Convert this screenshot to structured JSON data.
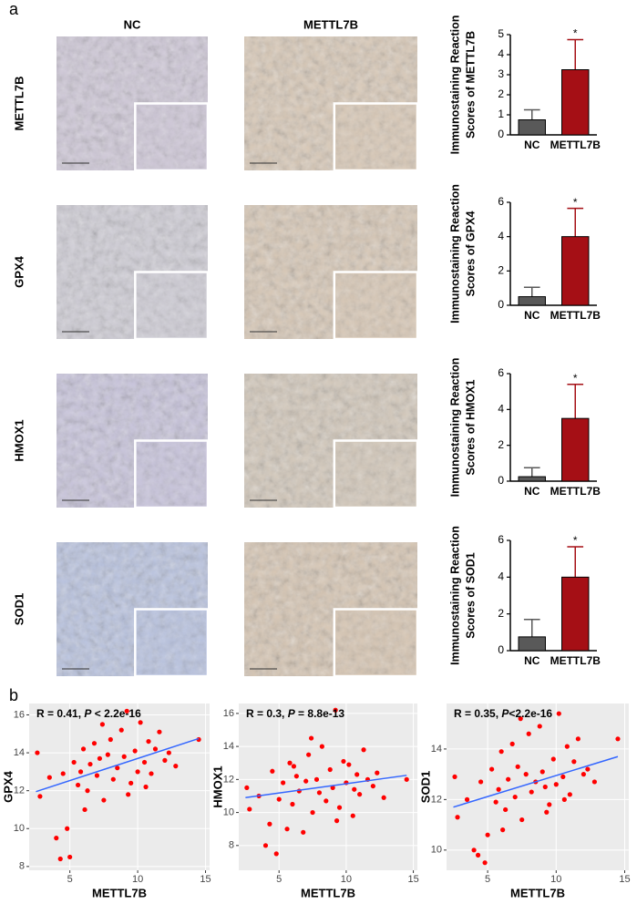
{
  "panels": {
    "a": "a",
    "b": "b"
  },
  "image_grid": {
    "columns": [
      "NC",
      "METTL7B"
    ],
    "rows": [
      "METTL7B",
      "GPX4",
      "HMOX1",
      "SOD1"
    ]
  },
  "chart_data": [
    {
      "type": "bar",
      "categories": [
        "NC",
        "METTL7B"
      ],
      "values": [
        0.75,
        3.25
      ],
      "errors": [
        0.5,
        1.5
      ],
      "colors": [
        "#595959",
        "#a50f15"
      ],
      "ylabel": [
        "Immunostaining Reaction",
        "Scores of METTL7B"
      ],
      "ylim": [
        0,
        5
      ],
      "yticks": [
        0,
        1,
        2,
        3,
        4,
        5
      ],
      "annotation": {
        "text": "*",
        "category": "METTL7B"
      }
    },
    {
      "type": "bar",
      "categories": [
        "NC",
        "METTL7B"
      ],
      "values": [
        0.5,
        4.0
      ],
      "errors": [
        0.55,
        1.65
      ],
      "colors": [
        "#595959",
        "#a50f15"
      ],
      "ylabel": [
        "Immunostaining Reaction",
        "Scores of GPX4"
      ],
      "ylim": [
        0,
        6
      ],
      "yticks": [
        0,
        2,
        4,
        6
      ],
      "annotation": {
        "text": "*",
        "category": "METTL7B"
      }
    },
    {
      "type": "bar",
      "categories": [
        "NC",
        "METTL7B"
      ],
      "values": [
        0.25,
        3.5
      ],
      "errors": [
        0.5,
        1.9
      ],
      "colors": [
        "#595959",
        "#a50f15"
      ],
      "ylabel": [
        "Immunostaining Reaction",
        "Scores of HMOX1"
      ],
      "ylim": [
        0,
        6
      ],
      "yticks": [
        0,
        2,
        4,
        6
      ],
      "annotation": {
        "text": "*",
        "category": "METTL7B"
      }
    },
    {
      "type": "bar",
      "categories": [
        "NC",
        "METTL7B"
      ],
      "values": [
        0.75,
        4.0
      ],
      "errors": [
        0.95,
        1.65
      ],
      "colors": [
        "#595959",
        "#a50f15"
      ],
      "ylabel": [
        "Immunostaining Reaction",
        "Scores of SOD1"
      ],
      "ylim": [
        0,
        6
      ],
      "yticks": [
        0,
        2,
        4,
        6
      ],
      "annotation": {
        "text": "*",
        "category": "METTL7B"
      }
    },
    {
      "type": "scatter",
      "xlabel": "METTL7B",
      "ylabel": "GPX4",
      "color": "#ff0000",
      "background": "#ebebeb",
      "grid": true,
      "annotation": [
        "R = 0.41, ",
        "P",
        " < 2.2e-16"
      ],
      "xlim": [
        2,
        15.3
      ],
      "ylim": [
        7.8,
        16.6
      ],
      "xticks": [
        5,
        10,
        15
      ],
      "yticks": [
        8,
        10,
        12,
        14,
        16
      ],
      "fit": {
        "x": [
          2.5,
          14.5
        ],
        "y": [
          11.95,
          14.75
        ],
        "color": "#3366ff"
      },
      "x": [
        2.6,
        2.8,
        3.5,
        4.0,
        4.3,
        4.5,
        4.8,
        5.0,
        5.3,
        5.6,
        5.8,
        6.0,
        6.3,
        6.5,
        6.8,
        7.0,
        7.2,
        7.5,
        7.8,
        8.0,
        8.2,
        8.5,
        8.8,
        9.0,
        9.2,
        9.5,
        9.8,
        10.0,
        10.2,
        10.5,
        10.8,
        11.0,
        11.3,
        11.6,
        12.0,
        12.3,
        12.8,
        14.5,
        9.3,
        7.4,
        6.1,
        10.6
      ],
      "y": [
        14.0,
        11.7,
        12.7,
        9.5,
        8.4,
        12.9,
        10.0,
        8.5,
        13.5,
        12.3,
        13.0,
        14.2,
        12.0,
        13.4,
        14.5,
        12.8,
        13.7,
        11.5,
        13.9,
        14.7,
        12.6,
        13.2,
        15.2,
        13.8,
        16.2,
        12.4,
        14.1,
        13.0,
        15.6,
        13.5,
        14.6,
        12.9,
        14.2,
        15.1,
        13.6,
        14.0,
        13.3,
        14.7,
        11.8,
        15.5,
        11.0,
        12.2
      ]
    },
    {
      "type": "scatter",
      "xlabel": "METTL7B",
      "ylabel": "HMOX1",
      "color": "#ff0000",
      "background": "#ebebeb",
      "grid": true,
      "annotation": [
        "R = 0.3, ",
        "P",
        " = 8.8e-13"
      ],
      "xlim": [
        2,
        15.3
      ],
      "ylim": [
        6.5,
        16.6
      ],
      "xticks": [
        5,
        10,
        15
      ],
      "yticks": [
        8,
        10,
        12,
        14,
        16
      ],
      "fit": {
        "x": [
          2.5,
          14.5
        ],
        "y": [
          10.9,
          12.25
        ],
        "color": "#3366ff"
      },
      "x": [
        2.6,
        2.8,
        3.5,
        4.0,
        4.3,
        4.5,
        4.8,
        5.0,
        5.3,
        5.6,
        5.8,
        6.0,
        6.3,
        6.5,
        6.8,
        7.0,
        7.2,
        7.5,
        7.8,
        8.0,
        8.2,
        8.5,
        8.8,
        9.0,
        9.2,
        9.5,
        9.8,
        10.0,
        10.2,
        10.5,
        10.8,
        11.0,
        11.3,
        11.6,
        12.0,
        12.3,
        12.8,
        14.5,
        9.3,
        7.4,
        6.1,
        10.6
      ],
      "y": [
        11.5,
        10.2,
        11.0,
        8.0,
        9.3,
        12.5,
        7.5,
        10.8,
        11.8,
        9.0,
        13.0,
        10.5,
        12.2,
        11.3,
        8.8,
        11.9,
        13.5,
        10.0,
        12.0,
        11.2,
        14.0,
        10.7,
        12.6,
        11.5,
        16.2,
        10.3,
        13.1,
        11.8,
        12.9,
        9.8,
        12.3,
        11.1,
        13.8,
        12.0,
        11.6,
        12.4,
        10.9,
        12.0,
        9.5,
        14.5,
        12.8,
        11.4
      ]
    },
    {
      "type": "scatter",
      "xlabel": "METTL7B",
      "ylabel": "SOD1",
      "color": "#ff0000",
      "background": "#ebebeb",
      "grid": true,
      "annotation": [
        "R = 0.35, ",
        "P",
        "<2.2e-16"
      ],
      "xlim": [
        2,
        15.3
      ],
      "ylim": [
        9.2,
        15.8
      ],
      "xticks": [
        5,
        10,
        15
      ],
      "yticks": [
        10,
        12,
        14
      ],
      "fit": {
        "x": [
          2.5,
          14.5
        ],
        "y": [
          11.7,
          13.7
        ],
        "color": "#3366ff"
      },
      "x": [
        2.6,
        2.8,
        3.5,
        4.0,
        4.3,
        4.5,
        4.8,
        5.0,
        5.3,
        5.6,
        5.8,
        6.0,
        6.3,
        6.5,
        6.8,
        7.0,
        7.2,
        7.5,
        7.8,
        8.0,
        8.2,
        8.5,
        8.8,
        9.0,
        9.2,
        9.5,
        9.8,
        10.0,
        10.2,
        10.5,
        10.8,
        11.0,
        11.3,
        11.6,
        12.0,
        12.3,
        12.8,
        14.5,
        9.3,
        7.4,
        6.1,
        10.6
      ],
      "y": [
        12.9,
        11.3,
        12.0,
        10.0,
        9.8,
        12.7,
        9.5,
        10.6,
        13.2,
        11.9,
        12.4,
        13.9,
        11.6,
        12.8,
        14.2,
        12.1,
        13.3,
        11.2,
        13.0,
        14.6,
        12.3,
        12.7,
        14.9,
        13.1,
        12.5,
        11.8,
        13.6,
        12.6,
        15.4,
        12.9,
        14.1,
        12.2,
        13.5,
        14.4,
        13.0,
        13.2,
        12.7,
        14.4,
        11.5,
        15.2,
        10.8,
        12.0
      ]
    }
  ]
}
